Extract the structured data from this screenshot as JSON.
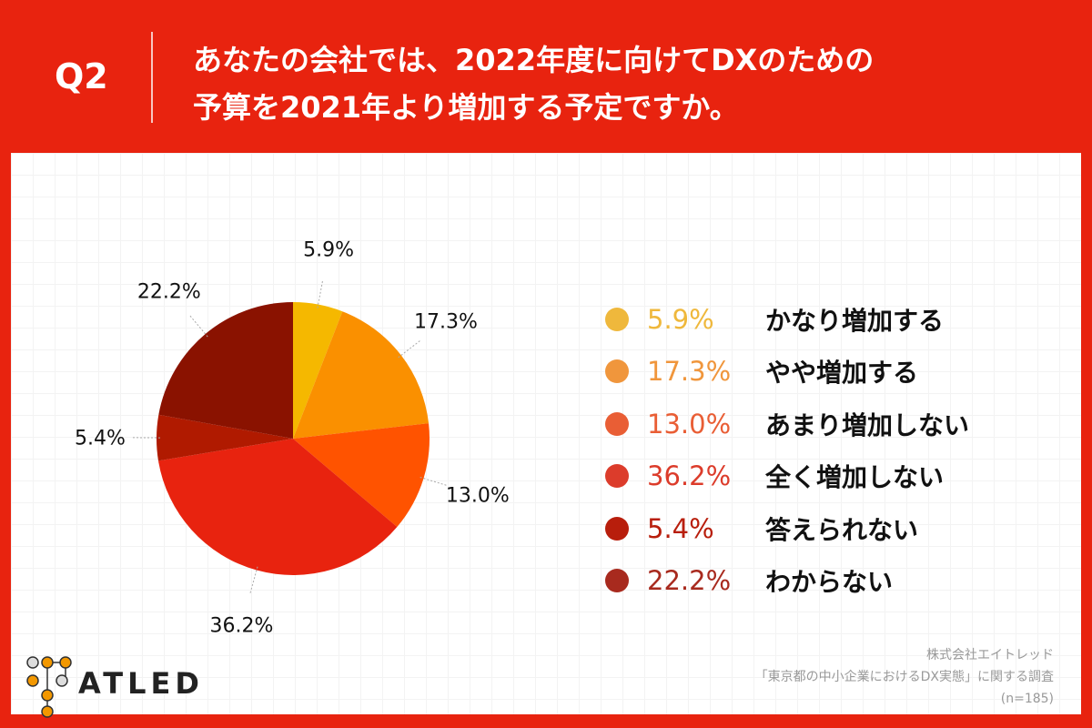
{
  "header": {
    "question": "Q2",
    "title_line1": "あなたの会社では、2022年度に向けてDXのための",
    "title_line2": "予算を2021年より増加する予定ですか。"
  },
  "chart_data": {
    "type": "pie",
    "start": "top",
    "direction": "clockwise",
    "categories": [
      "かなり増加する",
      "やや増加する",
      "あまり増加しない",
      "全く増加しない",
      "答えられない",
      "わからない"
    ],
    "values": [
      5.9,
      17.3,
      13.0,
      36.2,
      5.4,
      22.2
    ],
    "labels": [
      "5.9%",
      "17.3%",
      "13.0%",
      "36.2%",
      "5.4%",
      "22.2%"
    ],
    "colors": [
      "#f5b800",
      "#fa9000",
      "#ff5300",
      "#e8230f",
      "#b01a00",
      "#8a1200"
    ],
    "legend_colors": [
      "#efb83c",
      "#f0963c",
      "#e95e35",
      "#dc3c2b",
      "#b81e0c",
      "#a82a1e"
    ],
    "legend_placement": "right"
  },
  "source": {
    "company": "株式会社エイトレッド",
    "survey": "「東京都の中小企業におけるDX実態」に関する調査",
    "n": "(n=185)"
  },
  "logo": {
    "text": "ATLED"
  }
}
